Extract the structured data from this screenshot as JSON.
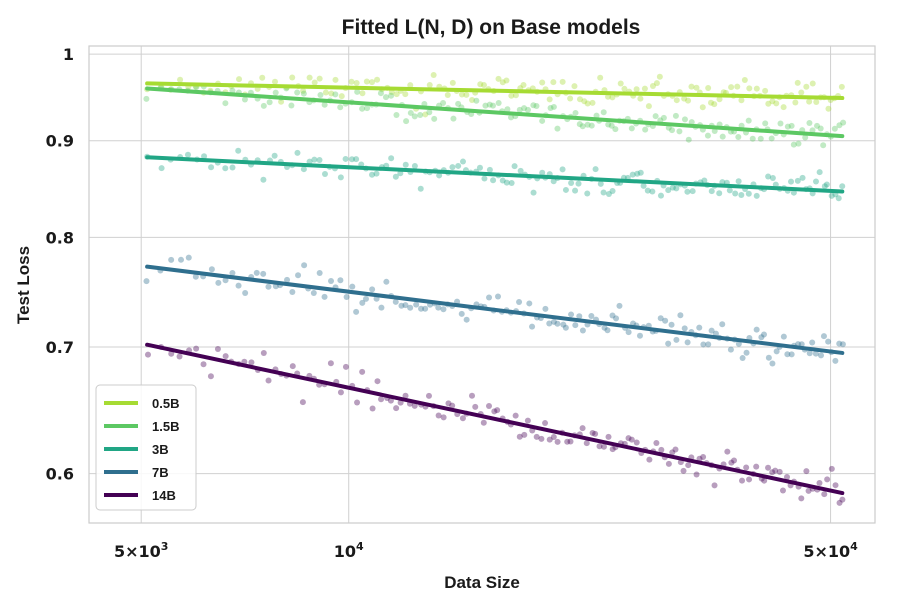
{
  "chart_data": {
    "type": "line",
    "title": "Fitted L(N, D) on Base models",
    "xlabel": "Data Size",
    "ylabel": "Test Loss",
    "xscale": "log",
    "yscale": "log",
    "xlim": [
      4200,
      58000
    ],
    "ylim": [
      0.565,
      1.01
    ],
    "xticks": [
      {
        "value": 5000,
        "base": "5×10",
        "exp": "3"
      },
      {
        "value": 10000,
        "base": "10",
        "exp": "4"
      },
      {
        "value": 50000,
        "base": "5×10",
        "exp": "4"
      }
    ],
    "yticks": [
      {
        "value": 0.6,
        "label": "0.6"
      },
      {
        "value": 0.7,
        "label": "0.7"
      },
      {
        "value": 0.8,
        "label": "0.8"
      },
      {
        "value": 0.9,
        "label": "0.9"
      },
      {
        "value": 1.0,
        "label": "1"
      }
    ],
    "grid": true,
    "legend_position": "bottom-left",
    "series": [
      {
        "name": "0.5B",
        "color": "#a6db33",
        "fit": {
          "x": [
            5100,
            52000
          ],
          "y": [
            0.965,
            0.948
          ]
        },
        "noise": 0.008,
        "seed": 11
      },
      {
        "name": "1.5B",
        "color": "#5cc863",
        "fit": {
          "x": [
            5100,
            52000
          ],
          "y": [
            0.959,
            0.905
          ]
        },
        "noise": 0.008,
        "seed": 23
      },
      {
        "name": "3B",
        "color": "#21a685",
        "fit": {
          "x": [
            5100,
            52000
          ],
          "y": [
            0.882,
            0.846
          ]
        },
        "noise": 0.008,
        "seed": 37
      },
      {
        "name": "7B",
        "color": "#2f6f8e",
        "fit": {
          "x": [
            5100,
            52000
          ],
          "y": [
            0.772,
            0.695
          ]
        },
        "noise": 0.009,
        "seed": 51
      },
      {
        "name": "14B",
        "color": "#440154",
        "fit": {
          "x": [
            5100,
            52000
          ],
          "y": [
            0.702,
            0.586
          ]
        },
        "noise": 0.01,
        "seed": 67
      }
    ],
    "scatter_points_per_series": 150
  }
}
